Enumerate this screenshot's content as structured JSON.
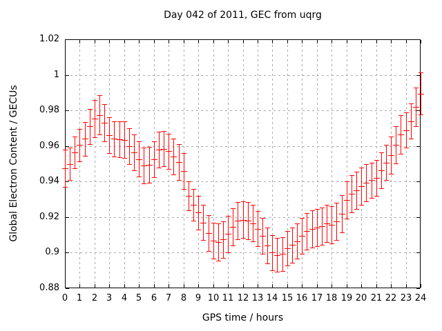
{
  "chart_data": {
    "type": "scatter",
    "subtype": "yerrorbars",
    "title": "Day 042 of 2011, GEC from uqrg",
    "xlabel": "GPS time / hours",
    "ylabel": "Global Electron Content / GECUs",
    "xlim": [
      0,
      24
    ],
    "ylim": [
      0.88,
      1.02
    ],
    "xtick_step": 1,
    "ytick_step": 0.02,
    "xtick_labels": [
      "0",
      "1",
      "2",
      "3",
      "4",
      "5",
      "6",
      "7",
      "8",
      "9",
      "10",
      "11",
      "12",
      "13",
      "14",
      "15",
      "16",
      "17",
      "18",
      "19",
      "20",
      "21",
      "22",
      "23",
      "24"
    ],
    "ytick_labels": [
      "0.88",
      "0.9",
      "0.92",
      "0.94",
      "0.96",
      "0.98",
      "1",
      "1.02"
    ],
    "grid": true,
    "legend": "none",
    "point_interval_hours": 0.3333,
    "series": [
      {
        "name": "GEC",
        "color": "#ff0000",
        "points": [
          [
            0.0,
            0.9475,
            0.0105
          ],
          [
            0.33,
            0.95,
            0.009
          ],
          [
            0.67,
            0.9565,
            0.009
          ],
          [
            1.0,
            0.9605,
            0.0092
          ],
          [
            1.33,
            0.964,
            0.0095
          ],
          [
            1.67,
            0.971,
            0.01
          ],
          [
            2.0,
            0.9755,
            0.0105
          ],
          [
            2.33,
            0.9775,
            0.011
          ],
          [
            2.67,
            0.973,
            0.0105
          ],
          [
            3.0,
            0.966,
            0.01
          ],
          [
            3.33,
            0.964,
            0.01
          ],
          [
            3.67,
            0.9637,
            0.01
          ],
          [
            4.0,
            0.9635,
            0.0102
          ],
          [
            4.33,
            0.96,
            0.01
          ],
          [
            4.67,
            0.9565,
            0.01
          ],
          [
            5.0,
            0.9527,
            0.01
          ],
          [
            5.33,
            0.949,
            0.01
          ],
          [
            5.67,
            0.9495,
            0.01
          ],
          [
            6.0,
            0.9525,
            0.01
          ],
          [
            6.33,
            0.958,
            0.01
          ],
          [
            6.67,
            0.9585,
            0.01
          ],
          [
            7.0,
            0.957,
            0.01
          ],
          [
            7.33,
            0.954,
            0.01
          ],
          [
            7.67,
            0.951,
            0.01
          ],
          [
            8.0,
            0.946,
            0.01
          ],
          [
            8.33,
            0.932,
            0.008
          ],
          [
            8.67,
            0.927,
            0.009
          ],
          [
            9.0,
            0.9225,
            0.0095
          ],
          [
            9.33,
            0.917,
            0.01
          ],
          [
            9.67,
            0.911,
            0.01
          ],
          [
            10.0,
            0.9068,
            0.01
          ],
          [
            10.33,
            0.906,
            0.0103
          ],
          [
            10.67,
            0.9075,
            0.0103
          ],
          [
            11.0,
            0.9105,
            0.0103
          ],
          [
            11.33,
            0.9145,
            0.0103
          ],
          [
            11.67,
            0.918,
            0.0103
          ],
          [
            12.0,
            0.9185,
            0.0103
          ],
          [
            12.33,
            0.918,
            0.0103
          ],
          [
            12.67,
            0.9165,
            0.0103
          ],
          [
            13.0,
            0.9135,
            0.01
          ],
          [
            13.33,
            0.9095,
            0.01
          ],
          [
            13.67,
            0.904,
            0.01
          ],
          [
            14.0,
            0.9,
            0.01
          ],
          [
            14.33,
            0.8987,
            0.0095
          ],
          [
            14.67,
            0.8993,
            0.0095
          ],
          [
            15.0,
            0.9025,
            0.0098
          ],
          [
            15.33,
            0.9043,
            0.01
          ],
          [
            15.67,
            0.9065,
            0.01
          ],
          [
            16.0,
            0.9095,
            0.01
          ],
          [
            16.33,
            0.912,
            0.0103
          ],
          [
            16.67,
            0.9133,
            0.0105
          ],
          [
            17.0,
            0.914,
            0.0105
          ],
          [
            17.33,
            0.915,
            0.0105
          ],
          [
            17.67,
            0.9165,
            0.0105
          ],
          [
            18.0,
            0.9158,
            0.0105
          ],
          [
            18.33,
            0.9175,
            0.0105
          ],
          [
            18.67,
            0.922,
            0.0105
          ],
          [
            19.0,
            0.9295,
            0.0105
          ],
          [
            19.33,
            0.933,
            0.0105
          ],
          [
            19.67,
            0.935,
            0.0105
          ],
          [
            20.0,
            0.9375,
            0.0105
          ],
          [
            20.33,
            0.9393,
            0.0105
          ],
          [
            20.67,
            0.9407,
            0.01
          ],
          [
            21.0,
            0.942,
            0.01
          ],
          [
            21.33,
            0.9464,
            0.01
          ],
          [
            21.67,
            0.9507,
            0.01
          ],
          [
            22.0,
            0.955,
            0.0105
          ],
          [
            22.33,
            0.9607,
            0.0105
          ],
          [
            22.67,
            0.9665,
            0.0108
          ],
          [
            23.0,
            0.969,
            0.01
          ],
          [
            23.33,
            0.974,
            0.01
          ],
          [
            23.67,
            0.982,
            0.011
          ],
          [
            24.0,
            0.9895,
            0.0118
          ]
        ]
      }
    ]
  },
  "colors": {
    "background": "#ffffff",
    "border": "#000000",
    "grid": "#a8a8a8",
    "errorbar": "#ff0000",
    "text": "#000000"
  }
}
